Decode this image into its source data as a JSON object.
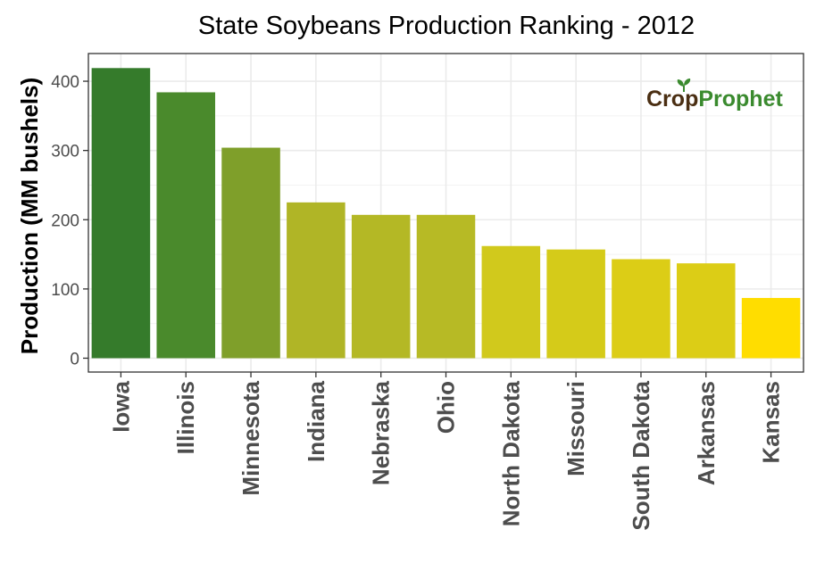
{
  "chart_data": {
    "type": "bar",
    "title": "State Soybeans Production Ranking - 2012",
    "xlabel": "",
    "ylabel": "Production (MM bushels)",
    "categories": [
      "Iowa",
      "Illinois",
      "Minnesota",
      "Indiana",
      "Nebraska",
      "Ohio",
      "North Dakota",
      "Missouri",
      "South Dakota",
      "Arkansas",
      "Kansas"
    ],
    "values": [
      419,
      384,
      304,
      225,
      207,
      207,
      162,
      157,
      143,
      137,
      87
    ],
    "colors": [
      "#357b2b",
      "#4a8a2c",
      "#7f9f2a",
      "#b0b526",
      "#b4b825",
      "#b7ba25",
      "#d1c91c",
      "#d5cb19",
      "#dccd16",
      "#dccd16",
      "#ffdd00"
    ],
    "yticks": [
      0,
      100,
      200,
      300,
      400
    ],
    "ylim": [
      -20,
      440
    ],
    "grid": true,
    "legend": "none"
  },
  "logo": {
    "crop": "Cr",
    "o": "o",
    "p": "p",
    "prophet": "Prophet",
    "icon": "sprout-icon"
  }
}
